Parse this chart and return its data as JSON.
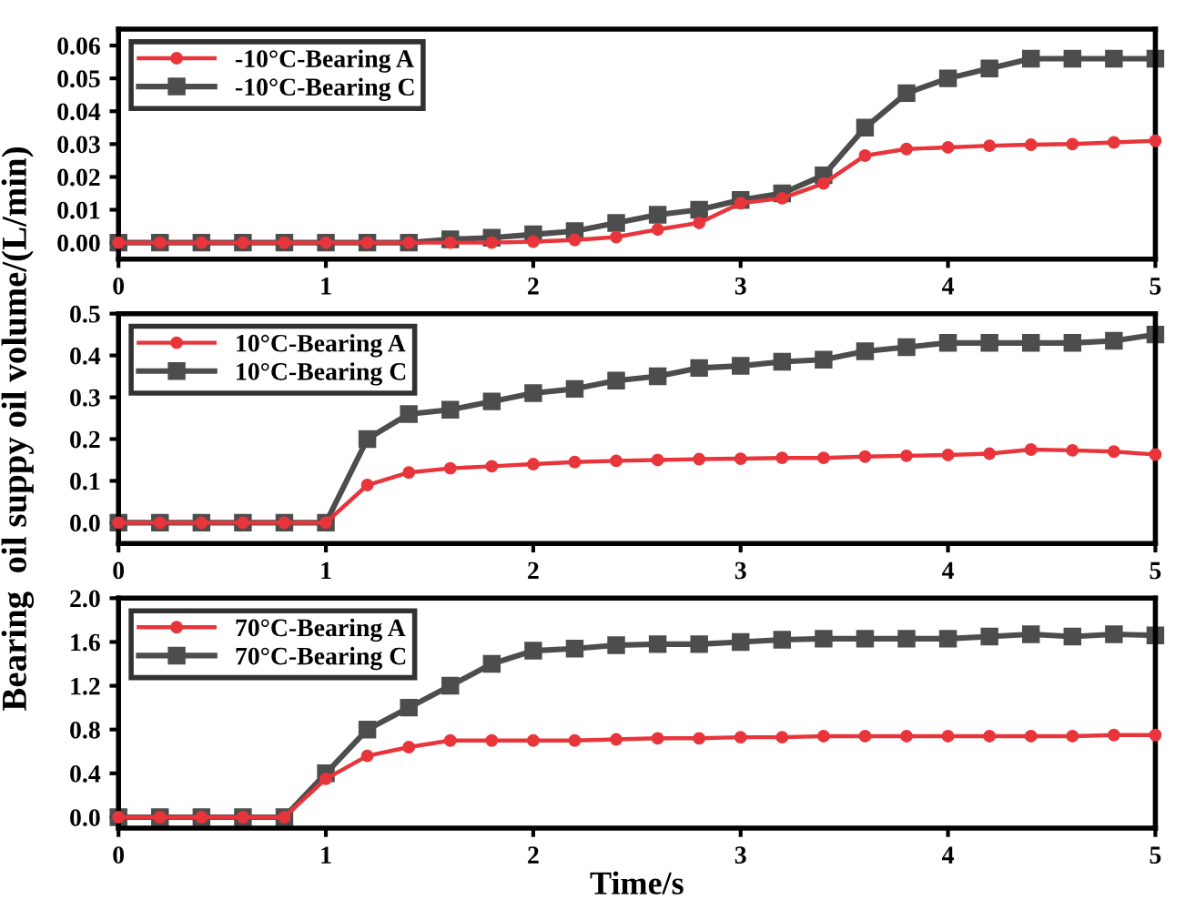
{
  "chart_data": [
    {
      "type": "line",
      "xlim": [
        0,
        5
      ],
      "xticks": [
        0,
        1,
        2,
        3,
        4,
        5
      ],
      "ylim": [
        -0.005,
        0.065
      ],
      "yticks": [
        {
          "value": 0,
          "label": "0.00"
        },
        {
          "value": 0.01,
          "label": "0.01"
        },
        {
          "value": 0.02,
          "label": "0.02"
        },
        {
          "value": 0.03,
          "label": "0.03"
        },
        {
          "value": 0.04,
          "label": "0.04"
        },
        {
          "value": 0.05,
          "label": "0.05"
        },
        {
          "value": 0.06,
          "label": "0.06"
        }
      ],
      "legend": "top left",
      "grid": false,
      "x": [
        0,
        0.2,
        0.4,
        0.6,
        0.8,
        1.0,
        1.2,
        1.4,
        1.6,
        1.8,
        2.0,
        2.2,
        2.4,
        2.6,
        2.8,
        3.0,
        3.2,
        3.4,
        3.6,
        3.8,
        4.0,
        4.2,
        4.4,
        4.6,
        4.8,
        5.0
      ],
      "series": [
        {
          "name": "-10°C-Bearing A",
          "color": "#e8353b",
          "marker": "circle",
          "values": [
            0,
            0,
            0,
            0,
            0,
            0,
            0,
            0,
            0,
            0,
            0.0003,
            0.0008,
            0.0017,
            0.004,
            0.006,
            0.012,
            0.0135,
            0.018,
            0.0265,
            0.0285,
            0.029,
            0.0295,
            0.0298,
            0.03,
            0.0305,
            0.031
          ]
        },
        {
          "name": "-10°C-Bearing C",
          "color": "#4d4d4d",
          "marker": "square",
          "values": [
            0,
            0,
            0,
            0,
            0,
            0,
            0,
            0,
            0.001,
            0.0015,
            0.0025,
            0.0035,
            0.006,
            0.0085,
            0.01,
            0.013,
            0.015,
            0.0205,
            0.035,
            0.0455,
            0.05,
            0.053,
            0.056,
            0.056,
            0.056,
            0.056
          ]
        }
      ]
    },
    {
      "type": "line",
      "xlim": [
        0,
        5
      ],
      "xticks": [
        0,
        1,
        2,
        3,
        4,
        5
      ],
      "ylim": [
        -0.05,
        0.5
      ],
      "yticks": [
        {
          "value": 0,
          "label": "0.0"
        },
        0.1,
        0.2,
        0.3,
        0.4,
        0.5
      ],
      "legend": "top left",
      "grid": false,
      "ylabel": "Bearing  oil suppy oil volume/(L/min)",
      "x": [
        0,
        0.2,
        0.4,
        0.6,
        0.8,
        1.0,
        1.2,
        1.4,
        1.6,
        1.8,
        2.0,
        2.2,
        2.4,
        2.6,
        2.8,
        3.0,
        3.2,
        3.4,
        3.6,
        3.8,
        4.0,
        4.2,
        4.4,
        4.6,
        4.8,
        5.0
      ],
      "series": [
        {
          "name": "10°C-Bearing A",
          "color": "#e8353b",
          "marker": "circle",
          "values": [
            0,
            0,
            0,
            0,
            0,
            0,
            0.09,
            0.12,
            0.13,
            0.135,
            0.14,
            0.145,
            0.148,
            0.15,
            0.152,
            0.153,
            0.155,
            0.155,
            0.158,
            0.16,
            0.162,
            0.165,
            0.175,
            0.173,
            0.17,
            0.163
          ]
        },
        {
          "name": "10°C-Bearing C",
          "color": "#4d4d4d",
          "marker": "square",
          "values": [
            0,
            0,
            0,
            0,
            0,
            0,
            0.2,
            0.26,
            0.27,
            0.29,
            0.31,
            0.32,
            0.34,
            0.35,
            0.37,
            0.375,
            0.385,
            0.39,
            0.41,
            0.42,
            0.43,
            0.43,
            0.43,
            0.43,
            0.435,
            0.45
          ]
        }
      ]
    },
    {
      "type": "line",
      "xlim": [
        0,
        5
      ],
      "xticks": [
        0,
        1,
        2,
        3,
        4,
        5
      ],
      "ylim": [
        -0.1,
        2.0
      ],
      "yticks": [
        {
          "value": 0,
          "label": "0.0"
        },
        0.4,
        0.8,
        1.2,
        1.6,
        {
          "value": 2,
          "label": "2.0"
        }
      ],
      "legend": "top left",
      "grid": false,
      "xlabel": "Time/s",
      "x": [
        0,
        0.2,
        0.4,
        0.6,
        0.8,
        1.0,
        1.2,
        1.4,
        1.6,
        1.8,
        2.0,
        2.2,
        2.4,
        2.6,
        2.8,
        3.0,
        3.2,
        3.4,
        3.6,
        3.8,
        4.0,
        4.2,
        4.4,
        4.6,
        4.8,
        5.0
      ],
      "series": [
        {
          "name": "70°C-Bearing A",
          "color": "#e8353b",
          "marker": "circle",
          "values": [
            0,
            0,
            0,
            0,
            0,
            0.35,
            0.56,
            0.64,
            0.7,
            0.7,
            0.7,
            0.7,
            0.71,
            0.72,
            0.72,
            0.73,
            0.73,
            0.74,
            0.74,
            0.74,
            0.74,
            0.74,
            0.74,
            0.74,
            0.75,
            0.75
          ]
        },
        {
          "name": "70°C-Bearing C",
          "color": "#4d4d4d",
          "marker": "square",
          "values": [
            0,
            0,
            0,
            0,
            0,
            0.4,
            0.8,
            1.0,
            1.2,
            1.4,
            1.52,
            1.54,
            1.57,
            1.58,
            1.58,
            1.6,
            1.62,
            1.63,
            1.63,
            1.63,
            1.63,
            1.65,
            1.67,
            1.65,
            1.67,
            1.66
          ]
        }
      ]
    }
  ]
}
